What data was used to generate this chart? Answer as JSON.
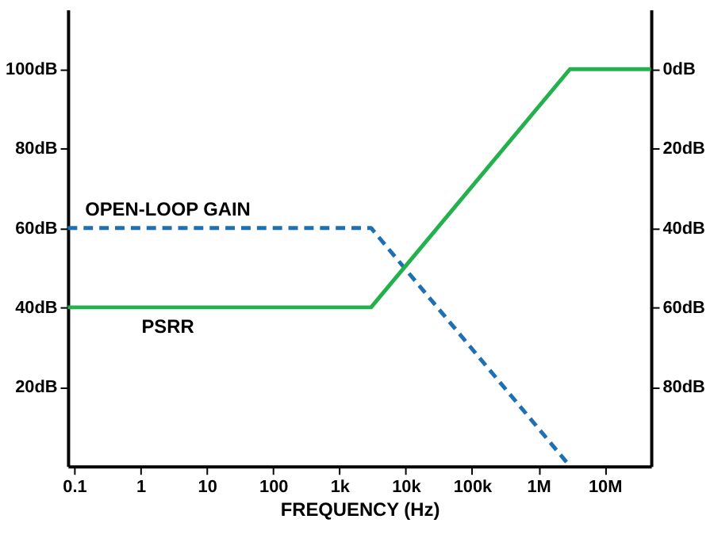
{
  "chart_data": {
    "type": "line",
    "xlabel": "FREQUENCY (Hz)",
    "log": "x",
    "marker": "none",
    "xlim": [
      0.08,
      50000000
    ],
    "ylim": [
      0,
      115
    ],
    "y2lim": [
      100,
      -15
    ],
    "xticks": [
      {
        "value": 0.1,
        "label": "0.1"
      },
      1,
      10,
      100,
      {
        "value": 1000,
        "label": "1k"
      },
      {
        "value": 10000,
        "label": "10k"
      },
      {
        "value": 100000,
        "label": "100k"
      },
      {
        "value": 1000000,
        "label": "1M"
      },
      {
        "value": 10000000,
        "label": "10M"
      }
    ],
    "yticks": [
      {
        "value": 20,
        "label": "20dB"
      },
      {
        "value": 40,
        "label": "40dB"
      },
      {
        "value": 60,
        "label": "60dB"
      },
      {
        "value": 80,
        "label": "80dB"
      },
      {
        "value": 100,
        "label": "100dB"
      }
    ],
    "y2ticks": [
      {
        "value": 0,
        "label": "0dB"
      },
      {
        "value": 20,
        "label": "20dB"
      },
      {
        "value": 40,
        "label": "40dB"
      },
      {
        "value": 60,
        "label": "60dB"
      },
      {
        "value": 80,
        "label": "80dB"
      }
    ],
    "series": [
      {
        "name": "OPEN-LOOP GAIN",
        "color": "#1f6fb5",
        "line_style": "dashed",
        "x": [
          0.08,
          3000,
          3000000
        ],
        "values": [
          60,
          60,
          0
        ]
      },
      {
        "name": "PSRR",
        "color": "#22b14c",
        "line_style": "solid",
        "axis": "y2",
        "x": [
          0.08,
          3000,
          3000000,
          50000000
        ],
        "values": [
          60,
          60,
          0,
          0
        ]
      }
    ]
  }
}
